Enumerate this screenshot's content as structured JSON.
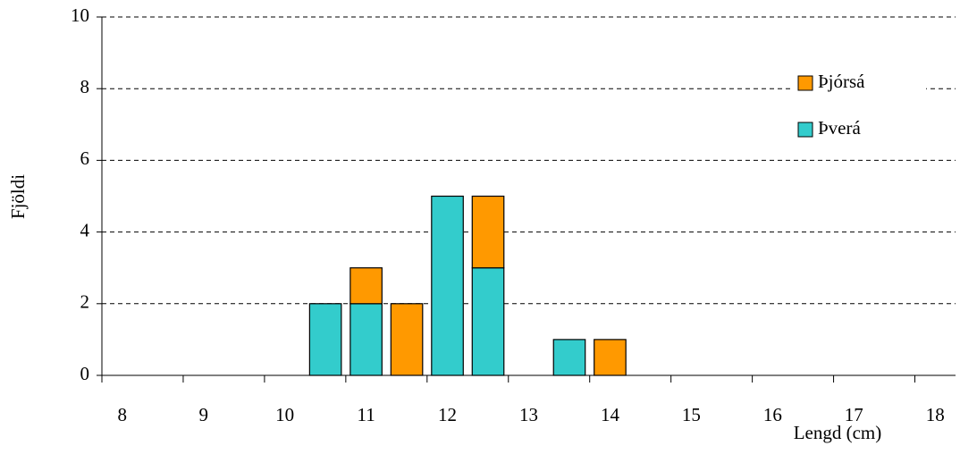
{
  "chart_data": {
    "type": "stacked-bar",
    "categories": [
      "8",
      null,
      "9",
      null,
      "10",
      null,
      "11",
      null,
      "12",
      null,
      "13",
      null,
      "14",
      null,
      "15",
      null,
      "16",
      null,
      "17",
      null,
      "18"
    ],
    "series": [
      {
        "name": "Þverá",
        "color": "#33cccc",
        "values": [
          0,
          0,
          0,
          0,
          0,
          2,
          2,
          0,
          5,
          3,
          0,
          1,
          0,
          0,
          0,
          0,
          0,
          0,
          0,
          0,
          0
        ]
      },
      {
        "name": "Þjórsá",
        "color": "#ff9900",
        "values": [
          0,
          0,
          0,
          0,
          0,
          0,
          1,
          2,
          0,
          2,
          0,
          0,
          1,
          0,
          0,
          0,
          0,
          0,
          0,
          0,
          0
        ]
      }
    ],
    "ylim": [
      0,
      10
    ],
    "yticks": [
      0,
      2,
      4,
      6,
      8,
      10
    ],
    "grid": true,
    "x_label": "Lengd (cm)",
    "y_label": "Fjöldi",
    "legend": "upper right"
  }
}
